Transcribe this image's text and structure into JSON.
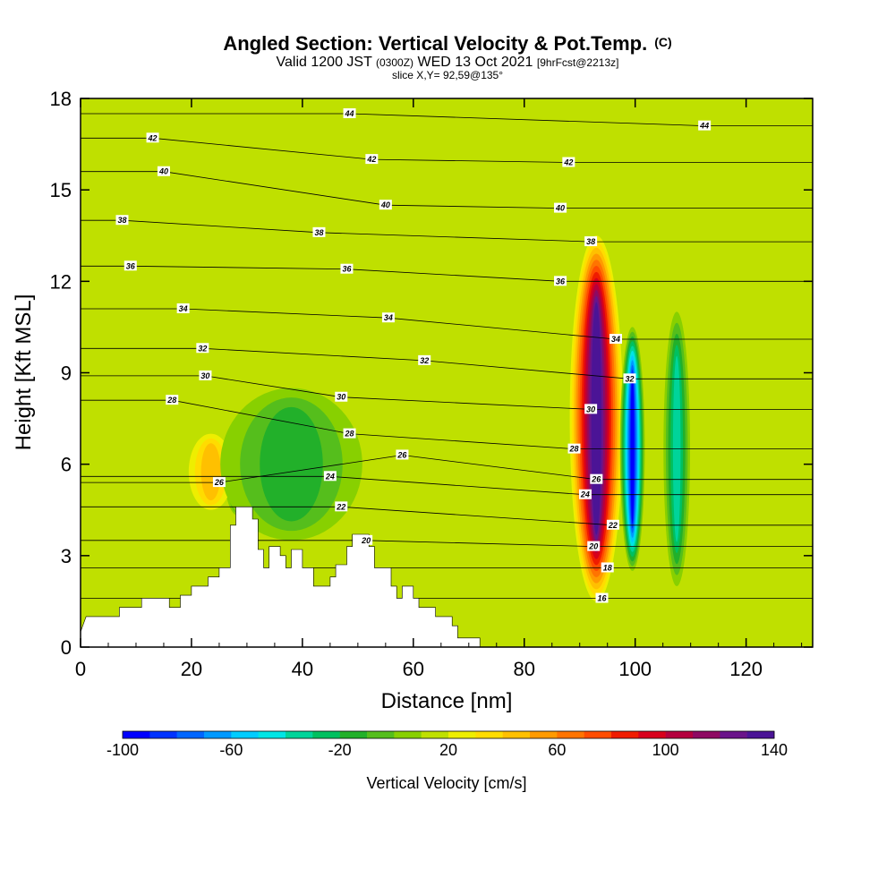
{
  "title": {
    "main": "Angled Section: Vertical Velocity & Pot.Temp.",
    "mark": "(C)",
    "valid_prefix": "Valid 1200 JST",
    "utc": "(0300Z)",
    "date": "WED 13 Oct 2021",
    "fcst": "[9hrFcst@2213z]",
    "slice": "slice X,Y= 92,59@135°"
  },
  "chart_data": {
    "type": "heatmap",
    "xlabel": "Distance [nm]",
    "ylabel": "Height [Kft MSL]",
    "xlim": [
      0,
      132
    ],
    "ylim": [
      0,
      18
    ],
    "x_ticks": [
      "0",
      "20",
      "40",
      "60",
      "80",
      "100",
      "120"
    ],
    "y_ticks": [
      "0",
      "3",
      "6",
      "9",
      "12",
      "15",
      "18"
    ],
    "colorbar": {
      "title": "Vertical Velocity [cm/s]",
      "range": [
        -100,
        140
      ],
      "step": 10,
      "tick_labels": [
        "-100",
        "-60",
        "-20",
        "20",
        "60",
        "100",
        "140"
      ],
      "colors": [
        "#0000ff",
        "#0033ff",
        "#0066ff",
        "#0099ff",
        "#00ccff",
        "#00e5e5",
        "#00d49a",
        "#00c060",
        "#22b02a",
        "#55be1c",
        "#88d000",
        "#bfe000",
        "#eeee00",
        "#ffdc00",
        "#ffc000",
        "#ff9a00",
        "#ff7400",
        "#ff4c00",
        "#f01c00",
        "#d8001c",
        "#b4003e",
        "#8e0a62",
        "#6a148a",
        "#4b1496"
      ]
    },
    "velocity_features": [
      {
        "x": 93,
        "z_bottom": 1.5,
        "z_top": 13.5,
        "width": 3,
        "value": 140,
        "label": "strong updraft"
      },
      {
        "x": 99.5,
        "z_bottom": 2.5,
        "z_top": 10.5,
        "width": 1.4,
        "value": -100,
        "label": "strong downdraft"
      },
      {
        "x": 28.5,
        "z_bottom": 4.3,
        "z_top": 7,
        "width": 1.6,
        "value": -60,
        "label": "lee downdraft"
      },
      {
        "x": 23.5,
        "z_bottom": 4.5,
        "z_top": 7,
        "width": 2.5,
        "value": 40,
        "label": "updraft"
      },
      {
        "x": 38,
        "z_bottom": 3.5,
        "z_top": 8.5,
        "width": 8,
        "value": -20,
        "label": "downdraft"
      },
      {
        "x": 107.5,
        "z_bottom": 2,
        "z_top": 11,
        "width": 1.5,
        "value": -40,
        "label": "downdraft"
      }
    ],
    "terrain": [
      [
        0,
        0.5
      ],
      [
        1,
        1
      ],
      [
        7,
        1
      ],
      [
        7,
        1.3
      ],
      [
        11,
        1.3
      ],
      [
        11,
        1.6
      ],
      [
        16,
        1.6
      ],
      [
        16,
        1.3
      ],
      [
        18,
        1.3
      ],
      [
        18,
        1.7
      ],
      [
        20,
        1.7
      ],
      [
        20,
        2
      ],
      [
        23,
        2
      ],
      [
        23,
        2.3
      ],
      [
        25,
        2.3
      ],
      [
        25,
        2.6
      ],
      [
        27,
        2.6
      ],
      [
        27,
        4
      ],
      [
        28,
        4
      ],
      [
        28,
        4.6
      ],
      [
        31,
        4.6
      ],
      [
        31,
        4.2
      ],
      [
        32,
        4.2
      ],
      [
        32,
        3.2
      ],
      [
        33,
        3.2
      ],
      [
        33,
        2.6
      ],
      [
        34,
        2.6
      ],
      [
        34,
        3.3
      ],
      [
        36,
        3.3
      ],
      [
        36,
        3
      ],
      [
        37,
        3
      ],
      [
        37,
        2.6
      ],
      [
        38,
        2.6
      ],
      [
        38,
        3.2
      ],
      [
        40,
        3.2
      ],
      [
        40,
        2.6
      ],
      [
        42,
        2.6
      ],
      [
        42,
        2
      ],
      [
        45,
        2
      ],
      [
        45,
        2.3
      ],
      [
        46,
        2.3
      ],
      [
        46,
        2.7
      ],
      [
        48,
        2.7
      ],
      [
        48,
        3.3
      ],
      [
        49,
        3.3
      ],
      [
        49,
        3.7
      ],
      [
        52,
        3.7
      ],
      [
        52,
        3.3
      ],
      [
        53,
        3.3
      ],
      [
        53,
        2.6
      ],
      [
        56,
        2.6
      ],
      [
        56,
        2
      ],
      [
        57,
        2
      ],
      [
        57,
        1.6
      ],
      [
        58,
        1.6
      ],
      [
        58,
        2
      ],
      [
        60,
        2
      ],
      [
        60,
        1.6
      ],
      [
        61,
        1.6
      ],
      [
        61,
        1.3
      ],
      [
        64,
        1.3
      ],
      [
        64,
        1
      ],
      [
        67,
        1
      ],
      [
        67,
        0.7
      ],
      [
        68,
        0.7
      ],
      [
        68,
        0.3
      ],
      [
        72,
        0.3
      ],
      [
        72,
        0
      ]
    ],
    "theta_contours": {
      "levels_degC": [
        16,
        18,
        20,
        22,
        24,
        26,
        28,
        30,
        32,
        34,
        36,
        38,
        40,
        42,
        44
      ],
      "labels": [
        {
          "x": 16.5,
          "y": 8.1,
          "text": "28"
        },
        {
          "x": 22.5,
          "y": 8.9,
          "text": "30"
        },
        {
          "x": 22,
          "y": 9.8,
          "text": "32"
        },
        {
          "x": 18.5,
          "y": 11.1,
          "text": "34"
        },
        {
          "x": 9,
          "y": 12.5,
          "text": "36"
        },
        {
          "x": 7.5,
          "y": 14,
          "text": "38"
        },
        {
          "x": 15,
          "y": 15.6,
          "text": "40"
        },
        {
          "x": 13,
          "y": 16.7,
          "text": "42"
        },
        {
          "x": 25,
          "y": 5.4,
          "text": "26"
        },
        {
          "x": 45,
          "y": 5.6,
          "text": "24"
        },
        {
          "x": 47,
          "y": 4.6,
          "text": "22"
        },
        {
          "x": 51.5,
          "y": 3.5,
          "text": "20"
        },
        {
          "x": 47,
          "y": 8.2,
          "text": "30"
        },
        {
          "x": 48.5,
          "y": 7,
          "text": "28"
        },
        {
          "x": 58,
          "y": 6.3,
          "text": "26"
        },
        {
          "x": 62,
          "y": 9.4,
          "text": "32"
        },
        {
          "x": 55.5,
          "y": 10.8,
          "text": "34"
        },
        {
          "x": 48,
          "y": 12.4,
          "text": "36"
        },
        {
          "x": 43,
          "y": 13.6,
          "text": "38"
        },
        {
          "x": 55,
          "y": 14.5,
          "text": "40"
        },
        {
          "x": 52.5,
          "y": 16,
          "text": "42"
        },
        {
          "x": 48.5,
          "y": 17.5,
          "text": "44"
        },
        {
          "x": 86.5,
          "y": 14.4,
          "text": "40"
        },
        {
          "x": 88,
          "y": 15.9,
          "text": "42"
        },
        {
          "x": 112.5,
          "y": 17.1,
          "text": "44"
        },
        {
          "x": 92,
          "y": 13.3,
          "text": "38"
        },
        {
          "x": 86.5,
          "y": 12,
          "text": "36"
        },
        {
          "x": 96.5,
          "y": 10.1,
          "text": "34"
        },
        {
          "x": 99,
          "y": 8.8,
          "text": "32"
        },
        {
          "x": 92,
          "y": 7.8,
          "text": "30"
        },
        {
          "x": 89,
          "y": 6.5,
          "text": "28"
        },
        {
          "x": 93,
          "y": 5.5,
          "text": "26"
        },
        {
          "x": 91,
          "y": 5,
          "text": "24"
        },
        {
          "x": 96,
          "y": 4,
          "text": "22"
        },
        {
          "x": 92.5,
          "y": 3.3,
          "text": "20"
        },
        {
          "x": 95,
          "y": 2.6,
          "text": "18"
        },
        {
          "x": 94,
          "y": 1.6,
          "text": "16"
        }
      ]
    }
  }
}
